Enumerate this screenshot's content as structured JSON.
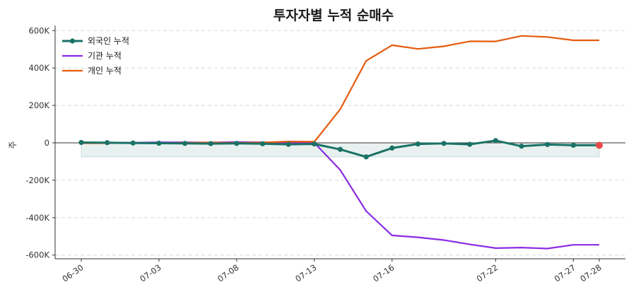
{
  "chart_data": {
    "type": "line",
    "title": "투자자별 누적 순매수",
    "xlabel": "",
    "ylabel": "주",
    "x": [
      "06-30",
      "07-01",
      "07-02",
      "07-03",
      "07-06",
      "07-07",
      "07-08",
      "07-09",
      "07-10",
      "07-13",
      "07-14",
      "07-15",
      "07-16",
      "07-17",
      "07-20",
      "07-21",
      "07-22",
      "07-23",
      "07-24",
      "07-27",
      "07-28"
    ],
    "x_tick_labels": [
      "06-30",
      "07-03",
      "07-08",
      "07-13",
      "07-16",
      "07-22",
      "07-27",
      "07-28"
    ],
    "y_tick_labels": [
      "-600K",
      "-400K",
      "-200K",
      "0",
      "200K",
      "400K",
      "600K"
    ],
    "ylim": [
      -620000,
      620000
    ],
    "grid": true,
    "legend_position": "top-left",
    "series": [
      {
        "name": "외국인 누적",
        "color": "#1a7266",
        "marker": true,
        "values": [
          2000,
          1000,
          -1000,
          -2000,
          -3000,
          -4000,
          -3000,
          -5000,
          -8000,
          -6000,
          -35000,
          -75000,
          -28000,
          -6000,
          -3000,
          -8000,
          12000,
          -18000,
          -9000,
          -13000,
          -13000
        ]
      },
      {
        "name": "기관 누적",
        "color": "#8a2be2",
        "marker": false,
        "values": [
          0,
          1000,
          1000,
          3000,
          3000,
          2000,
          4000,
          3000,
          1000,
          0,
          -145000,
          -365000,
          -495000,
          -505000,
          -520000,
          -543000,
          -563000,
          -560000,
          -565000,
          -545000,
          -545000
        ]
      },
      {
        "name": "개인 누적",
        "color": "#e55b0e",
        "marker": false,
        "values": [
          -2000,
          -2000,
          0,
          -1000,
          0,
          2000,
          0,
          2000,
          7000,
          6000,
          180000,
          438000,
          522000,
          502000,
          516000,
          543000,
          542000,
          572000,
          566000,
          548000,
          548000
        ]
      }
    ]
  }
}
